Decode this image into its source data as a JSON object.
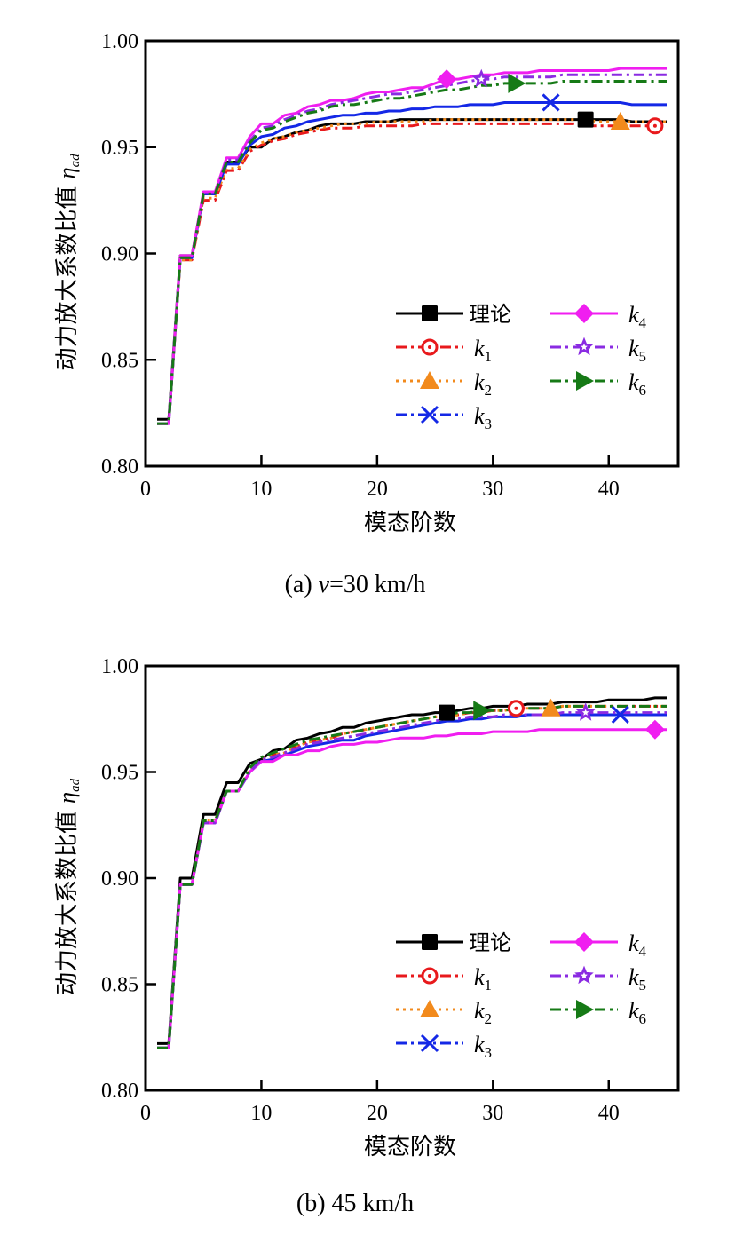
{
  "chart_data": [
    {
      "type": "line",
      "panel": "a",
      "caption_prefix": "(a) ",
      "caption_italic": "v",
      "caption_suffix": "=30 km/h",
      "xlabel": "模态阶数",
      "ylabel": "动力放大系数比值",
      "ylabel_symbol": "η",
      "ylabel_symbol_sub": "ad",
      "xlim": [
        0,
        46
      ],
      "ylim": [
        0.8,
        1.0
      ],
      "xticks": [
        0,
        10,
        20,
        30,
        40
      ],
      "xtick_labels": [
        "0",
        "10",
        "20",
        "30",
        "40"
      ],
      "yticks": [
        0.8,
        0.85,
        0.9,
        0.95,
        1.0
      ],
      "ytick_labels": [
        "0.80",
        "0.85",
        "0.90",
        "0.95",
        "1.00"
      ],
      "grid": false,
      "legend_position": "lower-right",
      "x": [
        1,
        2,
        3,
        4,
        5,
        6,
        7,
        8,
        9,
        10,
        11,
        12,
        13,
        14,
        15,
        16,
        17,
        18,
        19,
        20,
        21,
        22,
        23,
        24,
        25,
        26,
        27,
        28,
        29,
        30,
        31,
        32,
        33,
        34,
        35,
        36,
        37,
        38,
        39,
        40,
        41,
        42,
        43,
        44,
        45
      ],
      "series": [
        {
          "name": "理论",
          "label_type": "text",
          "color": "#000000",
          "dash": "solid",
          "marker": "square",
          "marker_at": 38,
          "values": [
            0.822,
            0.822,
            0.899,
            0.899,
            0.928,
            0.928,
            0.943,
            0.943,
            0.95,
            0.95,
            0.954,
            0.955,
            0.957,
            0.958,
            0.96,
            0.961,
            0.961,
            0.961,
            0.962,
            0.962,
            0.962,
            0.963,
            0.963,
            0.963,
            0.963,
            0.963,
            0.963,
            0.963,
            0.963,
            0.963,
            0.963,
            0.963,
            0.963,
            0.963,
            0.963,
            0.963,
            0.963,
            0.963,
            0.963,
            0.963,
            0.963,
            0.962,
            0.962,
            0.962,
            0.962
          ]
        },
        {
          "name": "k",
          "sub": "1",
          "label_type": "k",
          "color": "#e8191c",
          "dash": "dashdotdot",
          "marker": "circle-dot",
          "marker_at": 44,
          "values": [
            0.82,
            0.82,
            0.897,
            0.897,
            0.925,
            0.925,
            0.939,
            0.939,
            0.948,
            0.951,
            0.953,
            0.954,
            0.956,
            0.957,
            0.958,
            0.959,
            0.959,
            0.959,
            0.96,
            0.96,
            0.96,
            0.96,
            0.96,
            0.961,
            0.961,
            0.961,
            0.961,
            0.961,
            0.961,
            0.961,
            0.961,
            0.961,
            0.961,
            0.961,
            0.961,
            0.961,
            0.961,
            0.96,
            0.96,
            0.96,
            0.96,
            0.96,
            0.96,
            0.96,
            0.96
          ]
        },
        {
          "name": "k",
          "sub": "2",
          "label_type": "k",
          "color": "#f28a1c",
          "dash": "dotted",
          "marker": "triangle-up",
          "marker_at": 41,
          "values": [
            0.82,
            0.82,
            0.897,
            0.897,
            0.926,
            0.926,
            0.94,
            0.94,
            0.949,
            0.952,
            0.954,
            0.955,
            0.957,
            0.958,
            0.959,
            0.96,
            0.961,
            0.961,
            0.961,
            0.962,
            0.962,
            0.962,
            0.962,
            0.962,
            0.963,
            0.963,
            0.963,
            0.963,
            0.963,
            0.963,
            0.963,
            0.963,
            0.963,
            0.963,
            0.963,
            0.963,
            0.963,
            0.963,
            0.962,
            0.962,
            0.962,
            0.962,
            0.962,
            0.962,
            0.962
          ]
        },
        {
          "name": "k",
          "sub": "3",
          "label_type": "k",
          "color": "#1428e6",
          "dash": "solid",
          "legend_dash": "dashdot",
          "marker": "x",
          "marker_at": 35,
          "values": [
            0.82,
            0.82,
            0.898,
            0.898,
            0.928,
            0.928,
            0.942,
            0.942,
            0.951,
            0.955,
            0.956,
            0.959,
            0.96,
            0.962,
            0.963,
            0.964,
            0.965,
            0.965,
            0.966,
            0.966,
            0.967,
            0.967,
            0.968,
            0.968,
            0.969,
            0.969,
            0.969,
            0.97,
            0.97,
            0.97,
            0.971,
            0.971,
            0.971,
            0.971,
            0.971,
            0.971,
            0.971,
            0.971,
            0.971,
            0.971,
            0.971,
            0.97,
            0.97,
            0.97,
            0.97
          ]
        },
        {
          "name": "k",
          "sub": "4",
          "label_type": "k",
          "color": "#f01ef0",
          "dash": "solid",
          "marker": "diamond",
          "marker_at": 26,
          "values": [
            0.82,
            0.82,
            0.899,
            0.899,
            0.929,
            0.929,
            0.945,
            0.945,
            0.955,
            0.961,
            0.961,
            0.965,
            0.966,
            0.969,
            0.97,
            0.972,
            0.972,
            0.973,
            0.975,
            0.976,
            0.976,
            0.977,
            0.978,
            0.978,
            0.98,
            0.982,
            0.982,
            0.983,
            0.984,
            0.984,
            0.985,
            0.985,
            0.985,
            0.986,
            0.986,
            0.986,
            0.986,
            0.986,
            0.986,
            0.986,
            0.987,
            0.987,
            0.987,
            0.987,
            0.987
          ]
        },
        {
          "name": "k",
          "sub": "5",
          "label_type": "k",
          "color": "#8a2be2",
          "dash": "dashdotdot",
          "marker": "star",
          "marker_at": 29,
          "values": [
            0.82,
            0.82,
            0.898,
            0.898,
            0.928,
            0.928,
            0.944,
            0.944,
            0.953,
            0.959,
            0.96,
            0.963,
            0.965,
            0.967,
            0.968,
            0.97,
            0.971,
            0.972,
            0.973,
            0.974,
            0.975,
            0.975,
            0.976,
            0.977,
            0.978,
            0.979,
            0.98,
            0.981,
            0.982,
            0.982,
            0.983,
            0.983,
            0.983,
            0.983,
            0.983,
            0.984,
            0.984,
            0.984,
            0.984,
            0.984,
            0.984,
            0.984,
            0.984,
            0.984,
            0.984
          ]
        },
        {
          "name": "k",
          "sub": "6",
          "label_type": "k",
          "color": "#167a16",
          "dash": "dashdot",
          "marker": "triangle-right",
          "marker_at": 32,
          "values": [
            0.82,
            0.82,
            0.898,
            0.898,
            0.928,
            0.928,
            0.943,
            0.943,
            0.952,
            0.958,
            0.959,
            0.962,
            0.964,
            0.966,
            0.967,
            0.969,
            0.97,
            0.97,
            0.971,
            0.972,
            0.973,
            0.973,
            0.974,
            0.975,
            0.976,
            0.977,
            0.977,
            0.978,
            0.979,
            0.979,
            0.98,
            0.98,
            0.98,
            0.98,
            0.98,
            0.981,
            0.981,
            0.981,
            0.981,
            0.981,
            0.981,
            0.981,
            0.981,
            0.981,
            0.981
          ]
        }
      ]
    },
    {
      "type": "line",
      "panel": "b",
      "caption_prefix": "(b) 45 km/h",
      "caption_italic": "",
      "caption_suffix": "",
      "xlabel": "模态阶数",
      "ylabel": "动力放大系数比值",
      "ylabel_symbol": "η",
      "ylabel_symbol_sub": "ad",
      "xlim": [
        0,
        46
      ],
      "ylim": [
        0.8,
        1.0
      ],
      "xticks": [
        0,
        10,
        20,
        30,
        40
      ],
      "xtick_labels": [
        "0",
        "10",
        "20",
        "30",
        "40"
      ],
      "yticks": [
        0.8,
        0.85,
        0.9,
        0.95,
        1.0
      ],
      "ytick_labels": [
        "0.80",
        "0.85",
        "0.90",
        "0.95",
        "1.00"
      ],
      "grid": false,
      "legend_position": "lower-right",
      "x": [
        1,
        2,
        3,
        4,
        5,
        6,
        7,
        8,
        9,
        10,
        11,
        12,
        13,
        14,
        15,
        16,
        17,
        18,
        19,
        20,
        21,
        22,
        23,
        24,
        25,
        26,
        27,
        28,
        29,
        30,
        31,
        32,
        33,
        34,
        35,
        36,
        37,
        38,
        39,
        40,
        41,
        42,
        43,
        44,
        45
      ],
      "series": [
        {
          "name": "理论",
          "label_type": "text",
          "color": "#000000",
          "dash": "solid",
          "marker": "square",
          "marker_at": 26,
          "values": [
            0.822,
            0.822,
            0.9,
            0.9,
            0.93,
            0.93,
            0.945,
            0.945,
            0.954,
            0.956,
            0.96,
            0.961,
            0.965,
            0.966,
            0.968,
            0.969,
            0.971,
            0.971,
            0.973,
            0.974,
            0.975,
            0.976,
            0.977,
            0.977,
            0.978,
            0.978,
            0.979,
            0.98,
            0.98,
            0.981,
            0.981,
            0.981,
            0.982,
            0.982,
            0.982,
            0.983,
            0.983,
            0.983,
            0.983,
            0.984,
            0.984,
            0.984,
            0.984,
            0.985,
            0.985
          ]
        },
        {
          "name": "k",
          "sub": "1",
          "label_type": "k",
          "color": "#e8191c",
          "dash": "dashdotdot",
          "marker": "circle-dot",
          "marker_at": 32,
          "values": [
            0.82,
            0.82,
            0.897,
            0.897,
            0.927,
            0.927,
            0.941,
            0.941,
            0.951,
            0.956,
            0.958,
            0.959,
            0.962,
            0.964,
            0.965,
            0.966,
            0.968,
            0.969,
            0.97,
            0.971,
            0.972,
            0.973,
            0.974,
            0.975,
            0.976,
            0.976,
            0.977,
            0.978,
            0.978,
            0.979,
            0.979,
            0.98,
            0.98,
            0.98,
            0.98,
            0.981,
            0.981,
            0.981,
            0.981,
            0.981,
            0.981,
            0.981,
            0.981,
            0.981,
            0.981
          ]
        },
        {
          "name": "k",
          "sub": "2",
          "label_type": "k",
          "color": "#f28a1c",
          "dash": "dotted",
          "marker": "triangle-up",
          "marker_at": 35,
          "values": [
            0.82,
            0.82,
            0.897,
            0.897,
            0.927,
            0.927,
            0.941,
            0.941,
            0.951,
            0.956,
            0.958,
            0.959,
            0.962,
            0.964,
            0.965,
            0.966,
            0.968,
            0.969,
            0.97,
            0.971,
            0.972,
            0.973,
            0.974,
            0.975,
            0.976,
            0.976,
            0.977,
            0.978,
            0.978,
            0.979,
            0.979,
            0.98,
            0.98,
            0.98,
            0.98,
            0.981,
            0.981,
            0.981,
            0.981,
            0.981,
            0.981,
            0.981,
            0.981,
            0.981,
            0.981
          ]
        },
        {
          "name": "k",
          "sub": "3",
          "label_type": "k",
          "color": "#1428e6",
          "dash": "solid",
          "legend_dash": "dashdot",
          "marker": "x",
          "marker_at": 41,
          "values": [
            0.82,
            0.82,
            0.897,
            0.897,
            0.926,
            0.926,
            0.941,
            0.941,
            0.95,
            0.955,
            0.956,
            0.958,
            0.96,
            0.962,
            0.963,
            0.964,
            0.965,
            0.965,
            0.967,
            0.968,
            0.969,
            0.97,
            0.971,
            0.972,
            0.973,
            0.974,
            0.974,
            0.975,
            0.975,
            0.976,
            0.976,
            0.976,
            0.977,
            0.977,
            0.977,
            0.977,
            0.977,
            0.977,
            0.977,
            0.977,
            0.977,
            0.977,
            0.977,
            0.977,
            0.977
          ]
        },
        {
          "name": "k",
          "sub": "4",
          "label_type": "k",
          "color": "#f01ef0",
          "dash": "solid",
          "marker": "diamond",
          "marker_at": 44,
          "values": [
            0.82,
            0.82,
            0.897,
            0.897,
            0.926,
            0.926,
            0.941,
            0.941,
            0.95,
            0.955,
            0.955,
            0.958,
            0.958,
            0.96,
            0.96,
            0.962,
            0.963,
            0.963,
            0.964,
            0.964,
            0.965,
            0.966,
            0.966,
            0.966,
            0.967,
            0.967,
            0.968,
            0.968,
            0.968,
            0.969,
            0.969,
            0.969,
            0.969,
            0.97,
            0.97,
            0.97,
            0.97,
            0.97,
            0.97,
            0.97,
            0.97,
            0.97,
            0.97,
            0.97,
            0.97
          ]
        },
        {
          "name": "k",
          "sub": "5",
          "label_type": "k",
          "color": "#8a2be2",
          "dash": "dashdotdot",
          "marker": "star",
          "marker_at": 38,
          "values": [
            0.82,
            0.82,
            0.897,
            0.897,
            0.926,
            0.926,
            0.941,
            0.941,
            0.95,
            0.956,
            0.957,
            0.959,
            0.961,
            0.963,
            0.964,
            0.965,
            0.966,
            0.967,
            0.968,
            0.969,
            0.97,
            0.971,
            0.972,
            0.973,
            0.974,
            0.975,
            0.975,
            0.976,
            0.976,
            0.976,
            0.977,
            0.977,
            0.977,
            0.977,
            0.977,
            0.978,
            0.978,
            0.978,
            0.978,
            0.978,
            0.978,
            0.978,
            0.978,
            0.978,
            0.978
          ]
        },
        {
          "name": "k",
          "sub": "6",
          "label_type": "k",
          "color": "#167a16",
          "dash": "dashdot",
          "marker": "triangle-right",
          "marker_at": 29,
          "values": [
            0.82,
            0.82,
            0.897,
            0.897,
            0.927,
            0.927,
            0.941,
            0.941,
            0.952,
            0.957,
            0.959,
            0.961,
            0.963,
            0.965,
            0.966,
            0.967,
            0.968,
            0.969,
            0.97,
            0.971,
            0.972,
            0.973,
            0.974,
            0.975,
            0.976,
            0.977,
            0.978,
            0.978,
            0.979,
            0.979,
            0.979,
            0.98,
            0.98,
            0.98,
            0.98,
            0.981,
            0.981,
            0.981,
            0.981,
            0.981,
            0.981,
            0.981,
            0.981,
            0.981,
            0.981
          ]
        }
      ]
    }
  ]
}
